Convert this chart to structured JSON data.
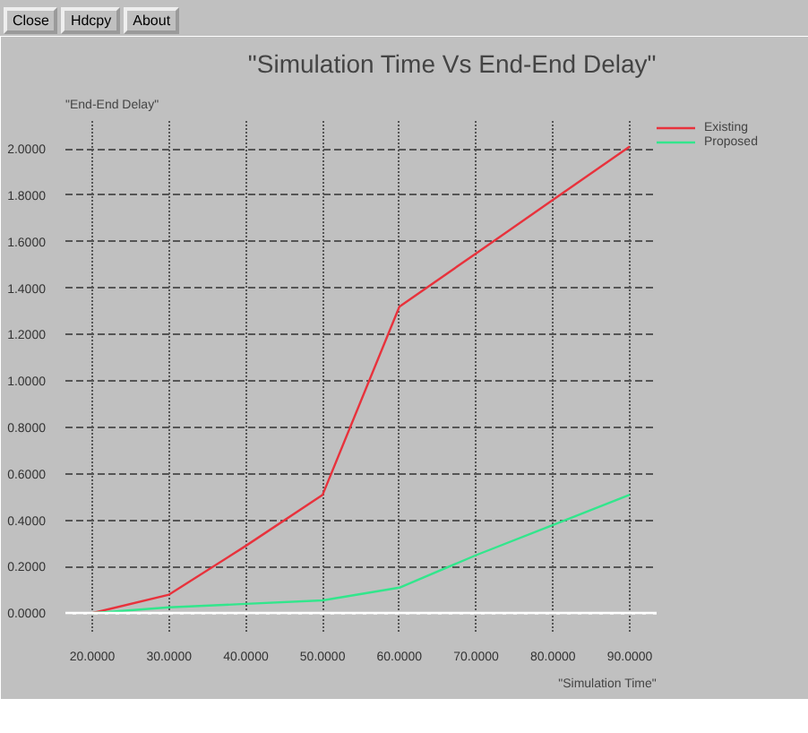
{
  "chart_data": {
    "type": "line",
    "title": "\"Simulation Time Vs End-End Delay\"",
    "xlabel": "\"Simulation Time\"",
    "ylabel": "\"End-End Delay\"",
    "annotations": [
      "Close",
      "Hdcpy",
      "About"
    ],
    "x": [
      20,
      30,
      40,
      50,
      60,
      70,
      80,
      90
    ],
    "series": [
      {
        "name": "Existing",
        "color": "#e8323c",
        "values": [
          0,
          0.08,
          0.29,
          0.51,
          1.32,
          1.55,
          1.78,
          2.01
        ]
      },
      {
        "name": "Proposed",
        "color": "#32e68c",
        "values": [
          0,
          0.025,
          0.04,
          0.055,
          0.11,
          0.25,
          0.38,
          0.51
        ]
      }
    ],
    "xlim": [
      16.5,
      93.5
    ],
    "ylim": [
      -0.08,
      2.12
    ],
    "xticks": [
      {
        "value": 20,
        "label": "20.0000"
      },
      {
        "value": 30,
        "label": "30.0000"
      },
      {
        "value": 40,
        "label": "40.0000"
      },
      {
        "value": 50,
        "label": "50.0000"
      },
      {
        "value": 60,
        "label": "60.0000"
      },
      {
        "value": 70,
        "label": "70.0000"
      },
      {
        "value": 80,
        "label": "80.0000"
      },
      {
        "value": 90,
        "label": "90.0000"
      }
    ],
    "yticks": [
      {
        "value": 0,
        "label": "0.0000"
      },
      {
        "value": 0.2,
        "label": "0.2000"
      },
      {
        "value": 0.4,
        "label": "0.4000"
      },
      {
        "value": 0.6,
        "label": "0.6000"
      },
      {
        "value": 0.8,
        "label": "0.8000"
      },
      {
        "value": 1.0,
        "label": "1.0000"
      },
      {
        "value": 1.2,
        "label": "1.2000"
      },
      {
        "value": 1.4,
        "label": "1.4000"
      },
      {
        "value": 1.6,
        "label": "1.6000"
      },
      {
        "value": 1.8,
        "label": "1.8000"
      },
      {
        "value": 2.0,
        "label": "2.0000"
      }
    ],
    "ref_lines": [
      {
        "axis": "y",
        "value": 0,
        "color": "#ffffff"
      }
    ],
    "grid": true,
    "legend": "top right",
    "marker": "none",
    "line_style": "solid"
  }
}
